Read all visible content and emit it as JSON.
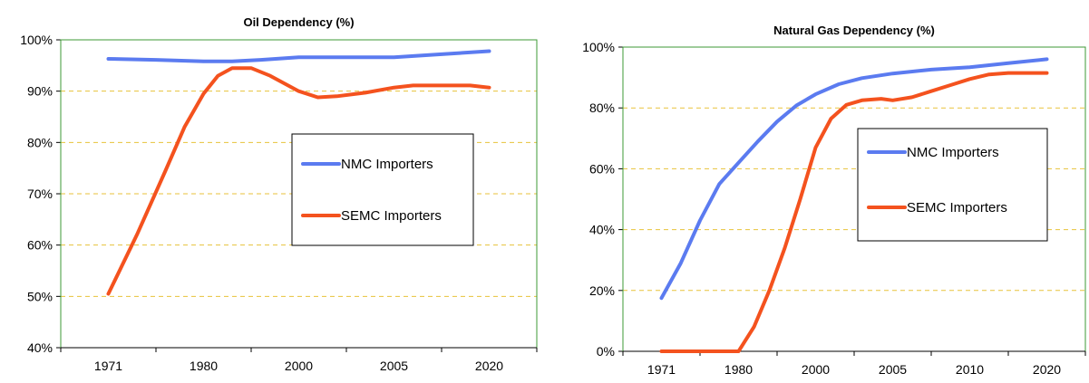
{
  "colors": {
    "nmc": "#5B7BF0",
    "semc": "#F4521E",
    "plot_border": "#3C9A35",
    "gridline": "#E8C23A"
  },
  "chart_data": [
    {
      "type": "line",
      "title": "Oil Dependency (%)",
      "categories": [
        "1971",
        "1980",
        "2000",
        "2005",
        "2020"
      ],
      "y_ticks": [
        "40%",
        "50%",
        "60%",
        "70%",
        "80%",
        "90%",
        "100%"
      ],
      "ylim": [
        40,
        100
      ],
      "grid": "horizontal dashed",
      "legend_position": "right",
      "series": [
        {
          "name": "NMC Importers",
          "color_key": "nmc",
          "points": [
            [
              0,
              96.3
            ],
            [
              0.5,
              96.1
            ],
            [
              1,
              95.8
            ],
            [
              1.3,
              95.8
            ],
            [
              1.6,
              96.1
            ],
            [
              2,
              96.6
            ],
            [
              2.5,
              96.6
            ],
            [
              3,
              96.6
            ],
            [
              3.5,
              97.2
            ],
            [
              4,
              97.8
            ]
          ]
        },
        {
          "name": "SEMC Importers",
          "color_key": "semc",
          "points": [
            [
              0,
              50.5
            ],
            [
              0.3,
              62
            ],
            [
              0.6,
              74.5
            ],
            [
              0.8,
              83
            ],
            [
              1,
              89.5
            ],
            [
              1.15,
              93
            ],
            [
              1.3,
              94.5
            ],
            [
              1.5,
              94.5
            ],
            [
              1.7,
              93
            ],
            [
              2,
              90
            ],
            [
              2.2,
              88.8
            ],
            [
              2.4,
              89
            ],
            [
              2.7,
              89.7
            ],
            [
              3,
              90.7
            ],
            [
              3.2,
              91.1
            ],
            [
              3.5,
              91.1
            ],
            [
              3.8,
              91.1
            ],
            [
              4,
              90.7
            ]
          ]
        }
      ]
    },
    {
      "type": "line",
      "title": "Natural Gas Dependency (%)",
      "categories": [
        "1971",
        "1980",
        "2000",
        "2005",
        "2010",
        "2020"
      ],
      "y_ticks": [
        "0%",
        "20%",
        "40%",
        "60%",
        "80%",
        "100%"
      ],
      "ylim": [
        0,
        100
      ],
      "grid": "horizontal dashed",
      "legend_position": "right",
      "series": [
        {
          "name": "NMC Importers",
          "color_key": "nmc",
          "points": [
            [
              0,
              17.5
            ],
            [
              0.25,
              29
            ],
            [
              0.5,
              43
            ],
            [
              0.75,
              55
            ],
            [
              1,
              62
            ],
            [
              1.25,
              69
            ],
            [
              1.5,
              75.5
            ],
            [
              1.75,
              80.8
            ],
            [
              2,
              84.5
            ],
            [
              2.3,
              87.8
            ],
            [
              2.6,
              89.8
            ],
            [
              3,
              91.3
            ],
            [
              3.5,
              92.6
            ],
            [
              4,
              93.4
            ],
            [
              4.5,
              94.7
            ],
            [
              5,
              96
            ]
          ]
        },
        {
          "name": "SEMC Importers",
          "color_key": "semc",
          "points": [
            [
              0,
              0
            ],
            [
              0.1,
              0
            ],
            [
              1,
              0
            ],
            [
              1.2,
              8
            ],
            [
              1.4,
              20
            ],
            [
              1.6,
              34
            ],
            [
              1.8,
              50
            ],
            [
              2,
              67
            ],
            [
              2.2,
              76.5
            ],
            [
              2.4,
              81
            ],
            [
              2.6,
              82.5
            ],
            [
              2.85,
              83
            ],
            [
              3,
              82.5
            ],
            [
              3.25,
              83.5
            ],
            [
              3.5,
              85.5
            ],
            [
              3.75,
              87.5
            ],
            [
              4,
              89.5
            ],
            [
              4.25,
              91
            ],
            [
              4.5,
              91.5
            ],
            [
              4.75,
              91.5
            ],
            [
              5,
              91.5
            ]
          ]
        }
      ]
    }
  ]
}
